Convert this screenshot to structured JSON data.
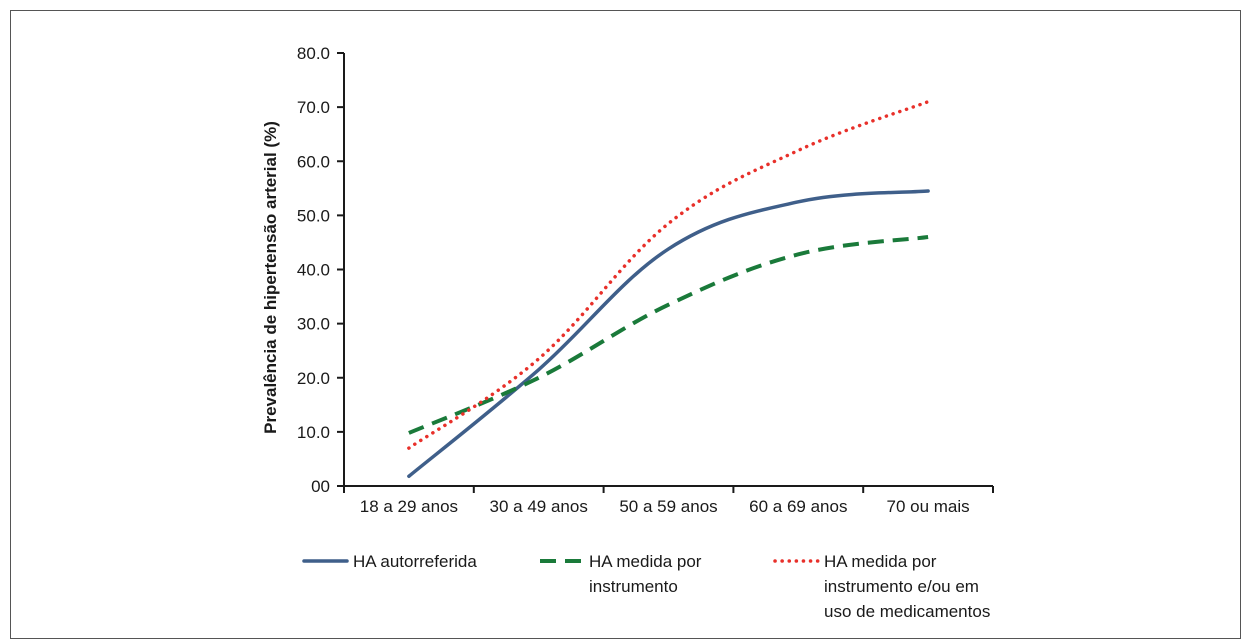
{
  "chart_data": {
    "type": "line",
    "title": "",
    "xlabel": "",
    "ylabel": "Prevalência de hipertensão arterial (%)",
    "categories": [
      "18 a 29 anos",
      "30 a 49 anos",
      "50 a 59 anos",
      "60 a 69 anos",
      "70 ou mais"
    ],
    "ylim": [
      0,
      80
    ],
    "yticks": [
      "00",
      "10.0",
      "20.0",
      "30.0",
      "40.0",
      "50.0",
      "60.0",
      "70.0",
      "80.0"
    ],
    "grid": false,
    "legend_position": "bottom",
    "series": [
      {
        "name": "HA autorreferida",
        "values": [
          1.8,
          21.5,
          43.8,
          52.5,
          54.5
        ],
        "color": "#3f5f8a",
        "style": "solid"
      },
      {
        "name": "HA medida por instrumento",
        "values": [
          9.8,
          20.0,
          33.5,
          42.8,
          46.0
        ],
        "color": "#1a7a3a",
        "style": "dashed"
      },
      {
        "name": "HA medida por instrumento e/ou em uso de medicamentos",
        "values": [
          7.0,
          23.5,
          48.5,
          62.0,
          71.0
        ],
        "color": "#e8302a",
        "style": "dotted"
      }
    ]
  }
}
